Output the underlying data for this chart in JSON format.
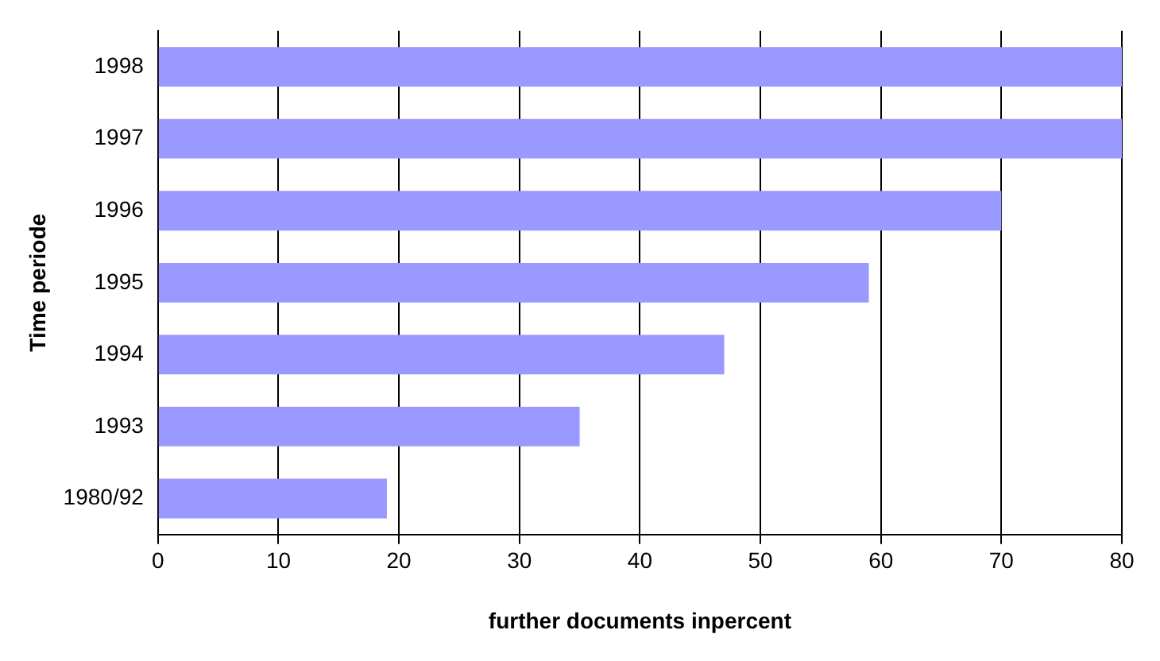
{
  "chart_data": {
    "type": "bar",
    "orientation": "horizontal",
    "xlabel": "further documents inpercent",
    "ylabel": "Time periode",
    "categories": [
      "1998",
      "1997",
      "1996",
      "1995",
      "1994",
      "1993",
      "1980/92"
    ],
    "values": [
      80,
      80,
      70,
      59,
      47,
      35,
      19
    ],
    "color": "#9999ff",
    "xlim": [
      0,
      80
    ],
    "xticks": [
      0,
      10,
      20,
      30,
      40,
      50,
      60,
      70,
      80
    ],
    "grid": "x",
    "legend": false
  }
}
